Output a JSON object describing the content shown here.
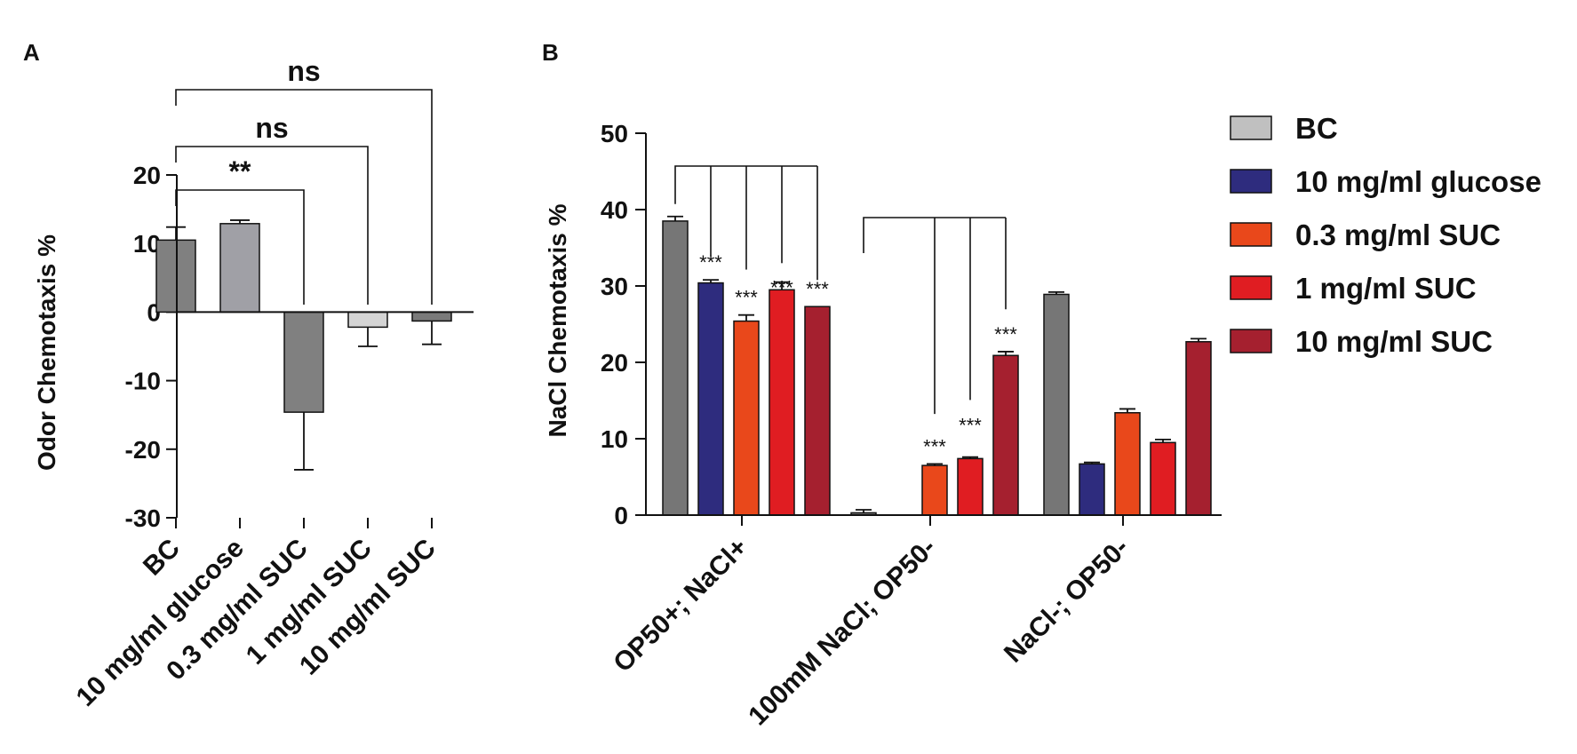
{
  "chart_data": [
    {
      "panel": "A",
      "type": "bar",
      "title": "",
      "xlabel": "",
      "ylabel": "Odor Chemotaxis %",
      "ylim": [
        -30,
        20
      ],
      "yticks": [
        20,
        10,
        0,
        -10,
        -20,
        -30
      ],
      "tick_labels": [
        "20",
        "10",
        "0",
        "-10",
        "-20",
        "-30"
      ],
      "categories": [
        "BC",
        "10 mg/ml glucose",
        "0.3 mg/ml SUC",
        "1 mg/ml SUC",
        "10 mg/ml SUC"
      ],
      "values": [
        10.5,
        12.9,
        -14.6,
        -2.2,
        -1.3
      ],
      "errors": [
        1.9,
        0.5,
        8.4,
        2.8,
        3.4
      ],
      "colors": [
        "#808080",
        "#a0a0a6",
        "#808080",
        "#d4d4d4",
        "#7a7a7a"
      ],
      "comparisons": [
        {
          "from": 0,
          "to": 2,
          "label": "**"
        },
        {
          "from": 0,
          "to": 3,
          "label": "ns"
        },
        {
          "from": 0,
          "to": 4,
          "label": "ns"
        }
      ]
    },
    {
      "panel": "B",
      "type": "bar",
      "title": "",
      "xlabel": "",
      "ylabel": "NaCl Chemotaxis %",
      "ylim": [
        0,
        50
      ],
      "yticks": [
        0,
        10,
        20,
        30,
        40,
        50
      ],
      "tick_labels": [
        "0",
        "10",
        "20",
        "30",
        "40",
        "50"
      ],
      "categories": [
        "OP50+; NaCl+",
        "100mM NaCl; OP50-",
        "NaCl-; OP50-"
      ],
      "series": [
        {
          "name": "BC",
          "color": "#767676",
          "values": [
            38.5,
            0.3,
            28.9
          ],
          "errors": [
            0.6,
            0.4,
            0.3
          ]
        },
        {
          "name": "10 mg/ml glucose",
          "color": "#2e2c7e",
          "values": [
            30.4,
            0,
            6.7
          ],
          "errors": [
            0.4,
            0,
            0.2
          ]
        },
        {
          "name": "0.3 mg/ml SUC",
          "color": "#e9481b",
          "values": [
            25.4,
            6.5,
            13.4
          ],
          "errors": [
            0.8,
            0.2,
            0.5
          ]
        },
        {
          "name": "1 mg/ml SUC",
          "color": "#e01d22",
          "values": [
            29.5,
            7.4,
            9.5
          ],
          "errors": [
            1.0,
            0.2,
            0.4
          ]
        },
        {
          "name": "10 mg/ml SUC",
          "color": "#a5202f",
          "values": [
            27.3,
            20.9,
            22.7
          ],
          "errors": [
            0,
            0.5,
            0.4
          ]
        }
      ],
      "significance": [
        {
          "category": 0,
          "series": 1,
          "label": "***"
        },
        {
          "category": 0,
          "series": 2,
          "label": "***"
        },
        {
          "category": 0,
          "series": 3,
          "label": "***"
        },
        {
          "category": 0,
          "series": 4,
          "label": "***"
        },
        {
          "category": 1,
          "series": 2,
          "label": "***"
        },
        {
          "category": 1,
          "series": 3,
          "label": "***"
        },
        {
          "category": 1,
          "series": 4,
          "label": "***"
        }
      ],
      "legend": {
        "position": "right",
        "entries": [
          {
            "label": "BC",
            "color": "#c0c0c0"
          },
          {
            "label": "10 mg/ml glucose",
            "color": "#2e2c7e"
          },
          {
            "label": "0.3 mg/ml SUC",
            "color": "#e9481b"
          },
          {
            "label": "1 mg/ml SUC",
            "color": "#e01d22"
          },
          {
            "label": "10 mg/ml SUC",
            "color": "#a5202f"
          }
        ]
      }
    }
  ],
  "panel_labels": {
    "a": "A",
    "b": "B"
  }
}
